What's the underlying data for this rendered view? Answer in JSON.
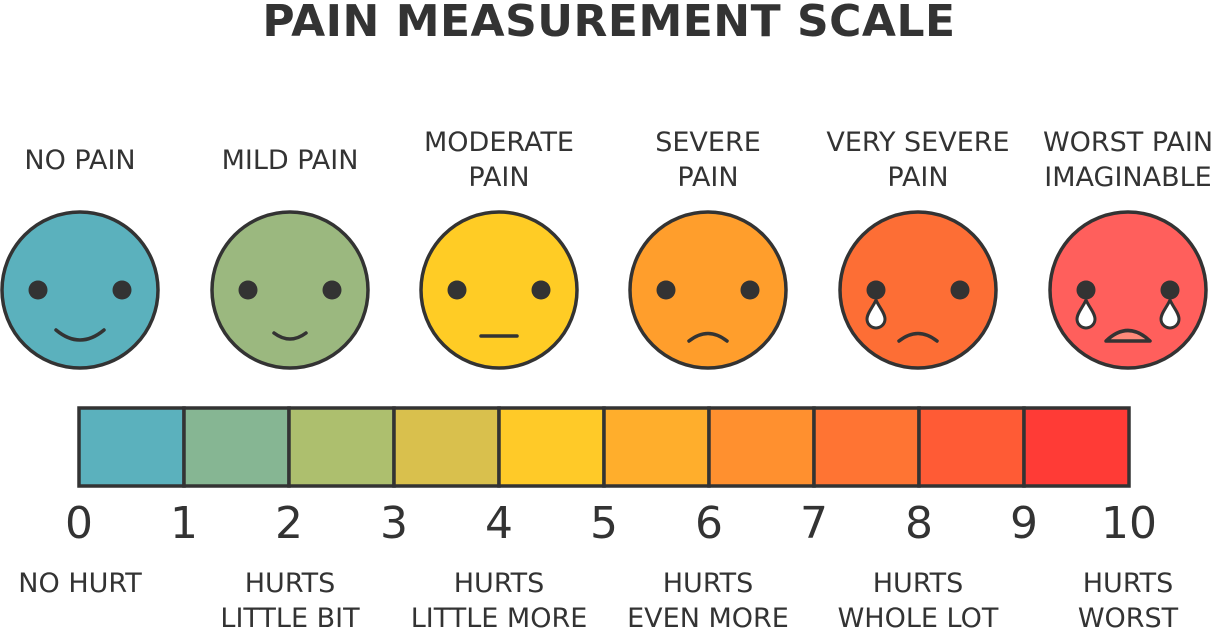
{
  "title": "PAIN MEASUREMENT SCALE",
  "faces": [
    {
      "label_lines": [
        "NO PAIN"
      ],
      "color": "#5bb1bd",
      "icon": "smile-face-icon"
    },
    {
      "label_lines": [
        "MILD PAIN"
      ],
      "color": "#9bb87f",
      "icon": "slight-smile-face-icon"
    },
    {
      "label_lines": [
        "MODERATE",
        "PAIN"
      ],
      "color": "#ffcc25",
      "icon": "neutral-face-icon"
    },
    {
      "label_lines": [
        "SEVERE",
        "PAIN"
      ],
      "color": "#ff9e2c",
      "icon": "frown-face-icon"
    },
    {
      "label_lines": [
        "VERY SEVERE",
        "PAIN"
      ],
      "color": "#fd6e35",
      "icon": "crying-face-icon"
    },
    {
      "label_lines": [
        "WORST PAIN",
        "IMAGINABLE"
      ],
      "color": "#ff5f5c",
      "icon": "sobbing-face-icon"
    }
  ],
  "scale": {
    "numbers": [
      "0",
      "1",
      "2",
      "3",
      "4",
      "5",
      "6",
      "7",
      "8",
      "9",
      "10"
    ],
    "segment_colors": [
      "#5bb1bd",
      "#86b693",
      "#adbf6e",
      "#d9c04d",
      "#ffca28",
      "#ffae2c",
      "#ff902f",
      "#ff7433",
      "#ff5b35",
      "#ff3b36"
    ]
  },
  "descriptions": [
    {
      "lines": [
        "NO HURT"
      ]
    },
    {
      "lines": [
        "HURTS",
        "LITTLE BIT"
      ]
    },
    {
      "lines": [
        "HURTS",
        "LITTLE MORE"
      ]
    },
    {
      "lines": [
        "HURTS",
        "EVEN MORE"
      ]
    },
    {
      "lines": [
        "HURTS",
        "WHOLE LOT"
      ]
    },
    {
      "lines": [
        "HURTS",
        "WORST"
      ]
    }
  ],
  "colors": {
    "outline": "#333333",
    "text": "#333333",
    "tear": "#ffffff"
  }
}
